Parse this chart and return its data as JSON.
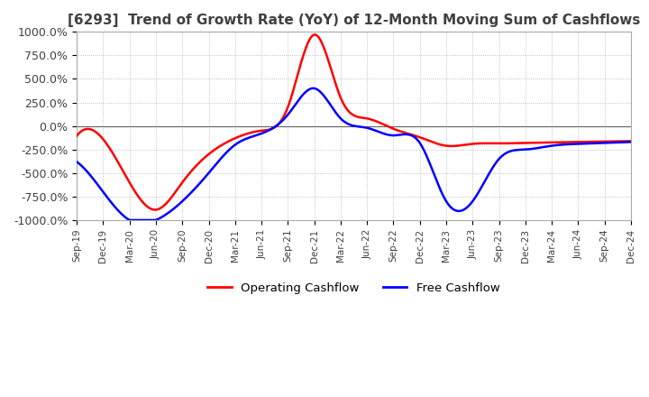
{
  "title": "[6293]  Trend of Growth Rate (YoY) of 12-Month Moving Sum of Cashflows",
  "ylim": [
    -1000,
    1000
  ],
  "yticks": [
    -1000,
    -750,
    -500,
    -250,
    0,
    250,
    500,
    750,
    1000
  ],
  "ytick_labels": [
    "-1000.0%",
    "-750.0%",
    "-500.0%",
    "-250.0%",
    "0.0%",
    "250.0%",
    "500.0%",
    "750.0%",
    "1000.0%"
  ],
  "xtick_labels": [
    "Sep-19",
    "Dec-19",
    "Mar-20",
    "Jun-20",
    "Sep-20",
    "Dec-20",
    "Mar-21",
    "Jun-21",
    "Sep-21",
    "Dec-21",
    "Mar-22",
    "Jun-22",
    "Sep-22",
    "Dec-22",
    "Mar-23",
    "Jun-23",
    "Sep-23",
    "Dec-23",
    "Mar-24",
    "Jun-24",
    "Sep-24",
    "Dec-24"
  ],
  "operating_cashflow_x": [
    0,
    1,
    2,
    3,
    4,
    5,
    6,
    7,
    8,
    9,
    10,
    11,
    12,
    13,
    14,
    15,
    16,
    17,
    18,
    19,
    20,
    21
  ],
  "operating_cashflow_y": [
    -105,
    -140,
    -600,
    -890,
    -600,
    -300,
    -130,
    -50,
    200,
    970,
    300,
    80,
    -30,
    -120,
    -210,
    -190,
    -185,
    -180,
    -175,
    -170,
    -165,
    -160
  ],
  "free_cashflow_x": [
    0,
    1,
    2,
    3,
    4,
    5,
    6,
    7,
    8,
    9,
    10,
    11,
    12,
    13,
    14,
    15,
    16,
    17,
    18,
    19,
    20,
    21
  ],
  "free_cashflow_y": [
    -380,
    -700,
    -1000,
    -1000,
    -800,
    -500,
    -200,
    -80,
    120,
    400,
    80,
    -20,
    -100,
    -180,
    -800,
    -800,
    -350,
    -250,
    -210,
    -190,
    -180,
    -170
  ],
  "op_color": "#ff0000",
  "fc_color": "#0000ff",
  "legend_labels": [
    "Operating Cashflow",
    "Free Cashflow"
  ],
  "legend_colors": [
    "#ff0000",
    "#0000ff"
  ],
  "grid_color": "#b0b0b0",
  "grid_style": "dotted",
  "zero_line_color": "#606060",
  "background_color": "#ffffff",
  "title_fontsize": 11,
  "title_color": "#404040"
}
